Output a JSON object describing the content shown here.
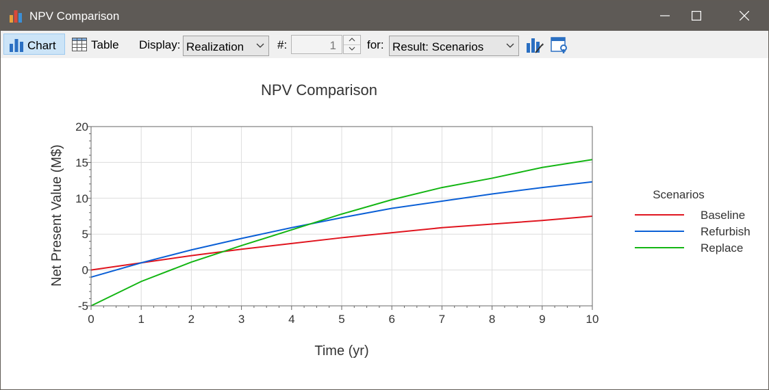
{
  "window": {
    "title": "NPV Comparison",
    "icons": [
      "bar-chart-app-icon",
      "minimize-icon",
      "maximize-icon",
      "close-icon"
    ]
  },
  "toolbar": {
    "chart_label": "Chart",
    "table_label": "Table",
    "display_label": "Display:",
    "display_value": "Realization",
    "number_label": "#:",
    "number_value": "1",
    "for_label": "for:",
    "for_value": "Result: Scenarios",
    "icons": [
      "chart-settings-icon",
      "window-settings-icon"
    ]
  },
  "chart_data": {
    "type": "line",
    "title": "NPV Comparison",
    "xlabel": "Time (yr)",
    "ylabel": "Net Present Value (M$)",
    "xlim": [
      0,
      10
    ],
    "ylim": [
      -5,
      20
    ],
    "xticks": [
      0,
      1,
      2,
      3,
      4,
      5,
      6,
      7,
      8,
      9,
      10
    ],
    "yticks": [
      -5,
      0,
      5,
      10,
      15,
      20
    ],
    "grid": true,
    "legend_title": "Scenarios",
    "legend_position": "right",
    "x": [
      0,
      1,
      2,
      3,
      4,
      5,
      6,
      7,
      8,
      9,
      10
    ],
    "series": [
      {
        "name": "Baseline",
        "color": "#e0141e",
        "values": [
          0,
          1.0,
          2.0,
          2.9,
          3.7,
          4.5,
          5.2,
          5.9,
          6.4,
          6.9,
          7.5
        ]
      },
      {
        "name": "Refurbish",
        "color": "#0a5fd6",
        "values": [
          -1.0,
          1.0,
          2.8,
          4.4,
          5.9,
          7.3,
          8.6,
          9.6,
          10.6,
          11.5,
          12.3
        ]
      },
      {
        "name": "Replace",
        "color": "#12b512",
        "values": [
          -5.0,
          -1.6,
          1.1,
          3.4,
          5.6,
          7.8,
          9.8,
          11.5,
          12.8,
          14.3,
          15.4
        ]
      }
    ]
  }
}
